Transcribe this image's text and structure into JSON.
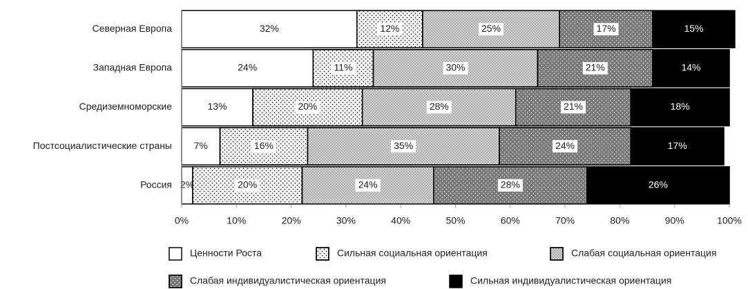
{
  "chart_data": {
    "type": "stacked-bar",
    "categories": [
      "Северная Европа",
      "Западная Европа",
      "Средиземноморские",
      "Постсоциалистические страны",
      "Россия"
    ],
    "series": [
      {
        "name": "Ценности Роста",
        "color": "#ffffff",
        "values": [
          32,
          24,
          13,
          7,
          2
        ],
        "value_labels": [
          "32%",
          "24%",
          "13%",
          "7%",
          "2%"
        ]
      },
      {
        "name": "Сильная социальная ориентация",
        "color": "#f4f4f4",
        "values": [
          12,
          11,
          20,
          16,
          20
        ],
        "value_labels": [
          "12%",
          "11%",
          "20%",
          "16%",
          "20%"
        ]
      },
      {
        "name": "Слабая социальная ориентация",
        "color": "#cfcfcf",
        "values": [
          25,
          30,
          28,
          35,
          24
        ],
        "value_labels": [
          "25%",
          "30%",
          "28%",
          "35%",
          "24%"
        ]
      },
      {
        "name": "Слабая индивидуалистическая ориентация",
        "color": "#7a7a7a",
        "values": [
          17,
          21,
          21,
          24,
          28
        ],
        "value_labels": [
          "17%",
          "21%",
          "21%",
          "24%",
          "28%"
        ]
      },
      {
        "name": "Сильная индивидуалистическая ориентация",
        "color": "#000000",
        "values": [
          15,
          14,
          18,
          17,
          26
        ],
        "value_labels": [
          "15%",
          "14%",
          "18%",
          "17%",
          "26%"
        ]
      }
    ],
    "xlim": [
      0,
      100
    ],
    "xticks": [
      {
        "value": 0,
        "label": "0%"
      },
      {
        "value": 10,
        "label": "10%"
      },
      {
        "value": 20,
        "label": "20%"
      },
      {
        "value": 30,
        "label": "30%"
      },
      {
        "value": 40,
        "label": "40%"
      },
      {
        "value": 50,
        "label": "50%"
      },
      {
        "value": 60,
        "label": "60%"
      },
      {
        "value": 70,
        "label": "70%"
      },
      {
        "value": 80,
        "label": "80%"
      },
      {
        "value": 90,
        "label": "90%"
      },
      {
        "value": 100,
        "label": "100%"
      }
    ],
    "legend": "bottom"
  }
}
